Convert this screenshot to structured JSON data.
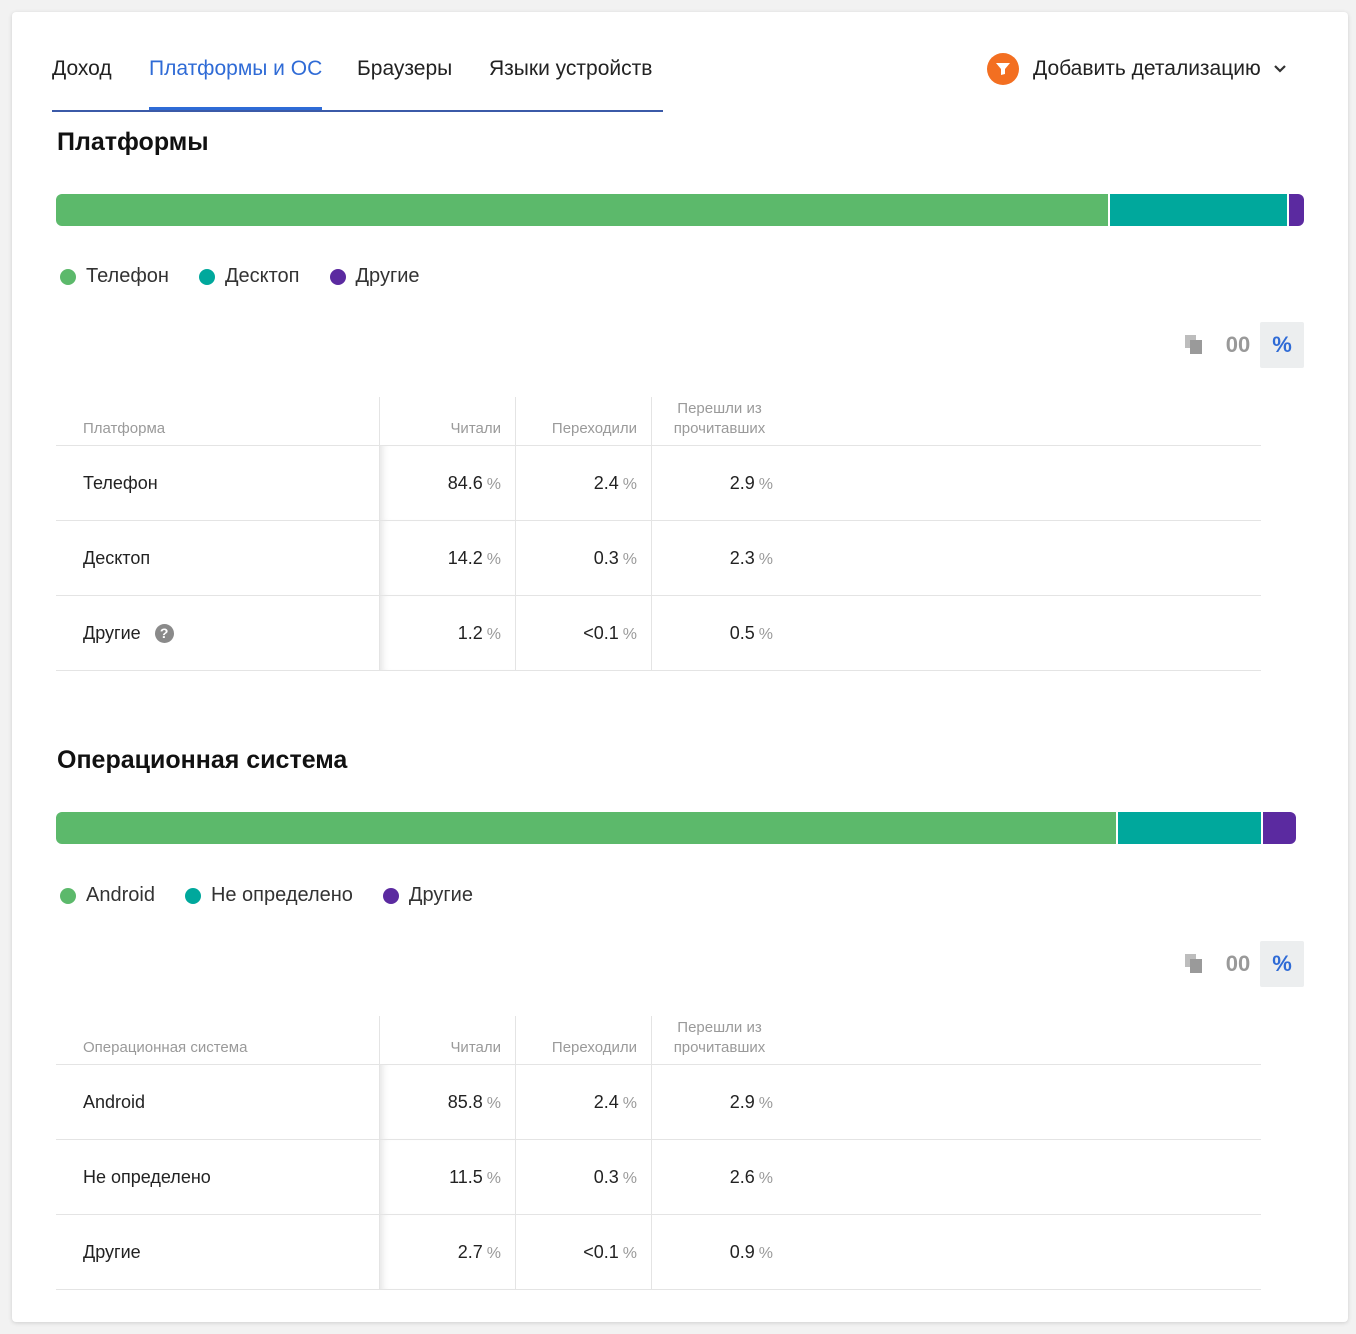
{
  "tabs": [
    {
      "label": "Доход"
    },
    {
      "label": "Платформы и ОС"
    },
    {
      "label": "Браузеры"
    },
    {
      "label": "Языки устройств"
    }
  ],
  "active_tab": "Платформы и ОС",
  "detail": {
    "label": "Добавить детализацию",
    "icon": "funnel-icon"
  },
  "colors": {
    "green": "#5cb96b",
    "teal": "#00a89c",
    "purple": "#5b2aa0",
    "accent": "#2f6bd6",
    "orange": "#f36f21"
  },
  "toggle": {
    "copy_icon": "copy-icon",
    "abs_label": "00",
    "pct_label": "%"
  },
  "platforms": {
    "title": "Платформы",
    "legend": [
      "Телефон",
      "Десктоп",
      "Другие"
    ],
    "share": [
      84.6,
      14.2,
      1.2
    ],
    "headers": {
      "name": "Платформа",
      "read": "Читали",
      "clicked": "Переходили",
      "from_read_1": "Перешли из",
      "from_read_2": "прочитавших"
    },
    "rows": [
      {
        "name": "Телефон",
        "read": "84.6",
        "clicked": "2.4",
        "from_read": "2.9"
      },
      {
        "name": "Десктоп",
        "read": "14.2",
        "clicked": "0.3",
        "from_read": "2.3"
      },
      {
        "name": "Другие",
        "read": "1.2",
        "clicked": "<0.1",
        "from_read": "0.5"
      }
    ]
  },
  "os": {
    "title": "Операционная система",
    "legend": [
      "Android",
      "Не определено",
      "Другие"
    ],
    "share": [
      85.8,
      11.5,
      2.7
    ],
    "headers": {
      "name": "Операционная система",
      "read": "Читали",
      "clicked": "Переходили",
      "from_read_1": "Перешли из",
      "from_read_2": "прочитавших"
    },
    "rows": [
      {
        "name": "Android",
        "read": "85.8",
        "clicked": "2.4",
        "from_read": "2.9"
      },
      {
        "name": "Не определено",
        "read": "11.5",
        "clicked": "0.3",
        "from_read": "2.6"
      },
      {
        "name": "Другие",
        "read": "2.7",
        "clicked": "<0.1",
        "from_read": "0.9"
      }
    ]
  },
  "unit": "%",
  "help_glyph": "?"
}
